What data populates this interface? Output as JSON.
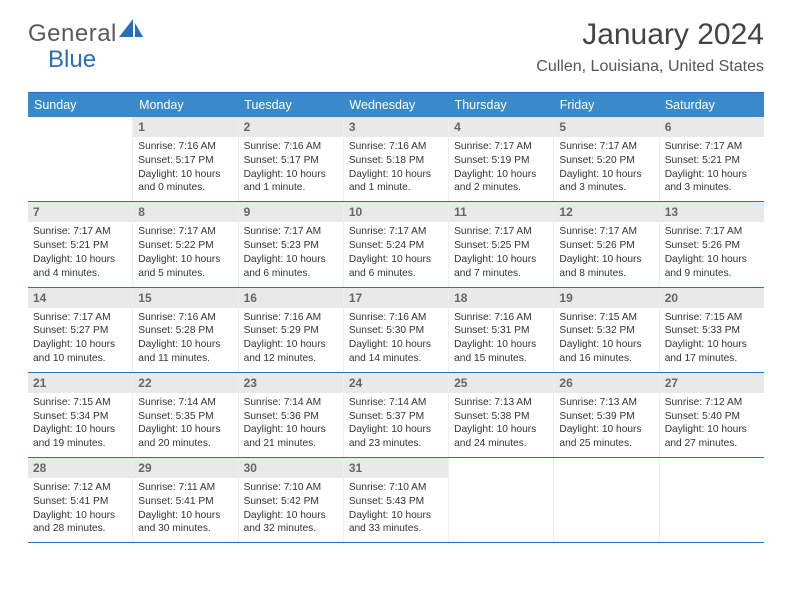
{
  "brand": {
    "general": "General",
    "blue": "Blue"
  },
  "title": "January 2024",
  "location": "Cullen, Louisiana, United States",
  "colors": {
    "accent": "#3a8acb",
    "border": "#2a6db8",
    "daybg": "#e9e9e9",
    "text": "#333333",
    "muted": "#666666"
  },
  "dayHeaders": [
    "Sunday",
    "Monday",
    "Tuesday",
    "Wednesday",
    "Thursday",
    "Friday",
    "Saturday"
  ],
  "weeks": [
    [
      {
        "n": "",
        "sr": "",
        "ss": "",
        "d1": "",
        "d2": "",
        "empty": true
      },
      {
        "n": "1",
        "sr": "Sunrise: 7:16 AM",
        "ss": "Sunset: 5:17 PM",
        "d1": "Daylight: 10 hours",
        "d2": "and 0 minutes."
      },
      {
        "n": "2",
        "sr": "Sunrise: 7:16 AM",
        "ss": "Sunset: 5:17 PM",
        "d1": "Daylight: 10 hours",
        "d2": "and 1 minute."
      },
      {
        "n": "3",
        "sr": "Sunrise: 7:16 AM",
        "ss": "Sunset: 5:18 PM",
        "d1": "Daylight: 10 hours",
        "d2": "and 1 minute."
      },
      {
        "n": "4",
        "sr": "Sunrise: 7:17 AM",
        "ss": "Sunset: 5:19 PM",
        "d1": "Daylight: 10 hours",
        "d2": "and 2 minutes."
      },
      {
        "n": "5",
        "sr": "Sunrise: 7:17 AM",
        "ss": "Sunset: 5:20 PM",
        "d1": "Daylight: 10 hours",
        "d2": "and 3 minutes."
      },
      {
        "n": "6",
        "sr": "Sunrise: 7:17 AM",
        "ss": "Sunset: 5:21 PM",
        "d1": "Daylight: 10 hours",
        "d2": "and 3 minutes."
      }
    ],
    [
      {
        "n": "7",
        "sr": "Sunrise: 7:17 AM",
        "ss": "Sunset: 5:21 PM",
        "d1": "Daylight: 10 hours",
        "d2": "and 4 minutes."
      },
      {
        "n": "8",
        "sr": "Sunrise: 7:17 AM",
        "ss": "Sunset: 5:22 PM",
        "d1": "Daylight: 10 hours",
        "d2": "and 5 minutes."
      },
      {
        "n": "9",
        "sr": "Sunrise: 7:17 AM",
        "ss": "Sunset: 5:23 PM",
        "d1": "Daylight: 10 hours",
        "d2": "and 6 minutes."
      },
      {
        "n": "10",
        "sr": "Sunrise: 7:17 AM",
        "ss": "Sunset: 5:24 PM",
        "d1": "Daylight: 10 hours",
        "d2": "and 6 minutes."
      },
      {
        "n": "11",
        "sr": "Sunrise: 7:17 AM",
        "ss": "Sunset: 5:25 PM",
        "d1": "Daylight: 10 hours",
        "d2": "and 7 minutes."
      },
      {
        "n": "12",
        "sr": "Sunrise: 7:17 AM",
        "ss": "Sunset: 5:26 PM",
        "d1": "Daylight: 10 hours",
        "d2": "and 8 minutes."
      },
      {
        "n": "13",
        "sr": "Sunrise: 7:17 AM",
        "ss": "Sunset: 5:26 PM",
        "d1": "Daylight: 10 hours",
        "d2": "and 9 minutes."
      }
    ],
    [
      {
        "n": "14",
        "sr": "Sunrise: 7:17 AM",
        "ss": "Sunset: 5:27 PM",
        "d1": "Daylight: 10 hours",
        "d2": "and 10 minutes."
      },
      {
        "n": "15",
        "sr": "Sunrise: 7:16 AM",
        "ss": "Sunset: 5:28 PM",
        "d1": "Daylight: 10 hours",
        "d2": "and 11 minutes."
      },
      {
        "n": "16",
        "sr": "Sunrise: 7:16 AM",
        "ss": "Sunset: 5:29 PM",
        "d1": "Daylight: 10 hours",
        "d2": "and 12 minutes."
      },
      {
        "n": "17",
        "sr": "Sunrise: 7:16 AM",
        "ss": "Sunset: 5:30 PM",
        "d1": "Daylight: 10 hours",
        "d2": "and 14 minutes."
      },
      {
        "n": "18",
        "sr": "Sunrise: 7:16 AM",
        "ss": "Sunset: 5:31 PM",
        "d1": "Daylight: 10 hours",
        "d2": "and 15 minutes."
      },
      {
        "n": "19",
        "sr": "Sunrise: 7:15 AM",
        "ss": "Sunset: 5:32 PM",
        "d1": "Daylight: 10 hours",
        "d2": "and 16 minutes."
      },
      {
        "n": "20",
        "sr": "Sunrise: 7:15 AM",
        "ss": "Sunset: 5:33 PM",
        "d1": "Daylight: 10 hours",
        "d2": "and 17 minutes."
      }
    ],
    [
      {
        "n": "21",
        "sr": "Sunrise: 7:15 AM",
        "ss": "Sunset: 5:34 PM",
        "d1": "Daylight: 10 hours",
        "d2": "and 19 minutes."
      },
      {
        "n": "22",
        "sr": "Sunrise: 7:14 AM",
        "ss": "Sunset: 5:35 PM",
        "d1": "Daylight: 10 hours",
        "d2": "and 20 minutes."
      },
      {
        "n": "23",
        "sr": "Sunrise: 7:14 AM",
        "ss": "Sunset: 5:36 PM",
        "d1": "Daylight: 10 hours",
        "d2": "and 21 minutes."
      },
      {
        "n": "24",
        "sr": "Sunrise: 7:14 AM",
        "ss": "Sunset: 5:37 PM",
        "d1": "Daylight: 10 hours",
        "d2": "and 23 minutes."
      },
      {
        "n": "25",
        "sr": "Sunrise: 7:13 AM",
        "ss": "Sunset: 5:38 PM",
        "d1": "Daylight: 10 hours",
        "d2": "and 24 minutes."
      },
      {
        "n": "26",
        "sr": "Sunrise: 7:13 AM",
        "ss": "Sunset: 5:39 PM",
        "d1": "Daylight: 10 hours",
        "d2": "and 25 minutes."
      },
      {
        "n": "27",
        "sr": "Sunrise: 7:12 AM",
        "ss": "Sunset: 5:40 PM",
        "d1": "Daylight: 10 hours",
        "d2": "and 27 minutes."
      }
    ],
    [
      {
        "n": "28",
        "sr": "Sunrise: 7:12 AM",
        "ss": "Sunset: 5:41 PM",
        "d1": "Daylight: 10 hours",
        "d2": "and 28 minutes."
      },
      {
        "n": "29",
        "sr": "Sunrise: 7:11 AM",
        "ss": "Sunset: 5:41 PM",
        "d1": "Daylight: 10 hours",
        "d2": "and 30 minutes."
      },
      {
        "n": "30",
        "sr": "Sunrise: 7:10 AM",
        "ss": "Sunset: 5:42 PM",
        "d1": "Daylight: 10 hours",
        "d2": "and 32 minutes."
      },
      {
        "n": "31",
        "sr": "Sunrise: 7:10 AM",
        "ss": "Sunset: 5:43 PM",
        "d1": "Daylight: 10 hours",
        "d2": "and 33 minutes."
      },
      {
        "n": "",
        "sr": "",
        "ss": "",
        "d1": "",
        "d2": "",
        "empty": true
      },
      {
        "n": "",
        "sr": "",
        "ss": "",
        "d1": "",
        "d2": "",
        "empty": true
      },
      {
        "n": "",
        "sr": "",
        "ss": "",
        "d1": "",
        "d2": "",
        "empty": true
      }
    ]
  ]
}
